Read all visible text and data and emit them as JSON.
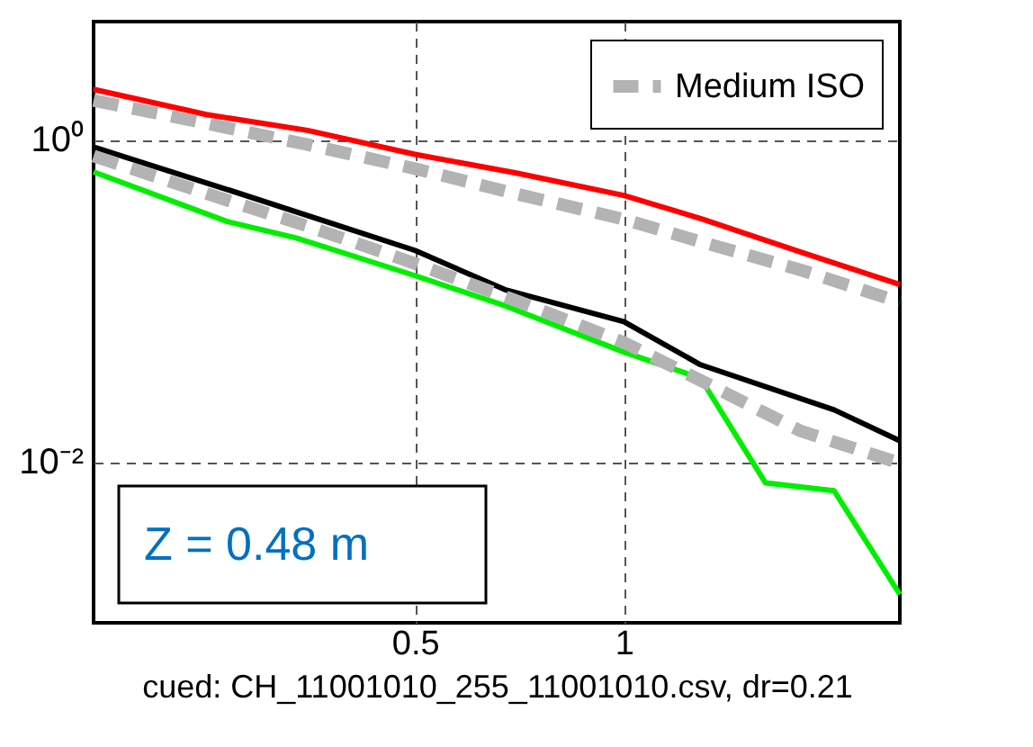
{
  "chart_data": {
    "type": "line",
    "xlabel": "cued: CH_11001010_255_11001010.csv, dr=0.21",
    "log": "xy",
    "xlim": [
      0.172,
      2.5
    ],
    "ylim": [
      0.001,
      5.4
    ],
    "xticks": [
      0.5,
      1
    ],
    "yticks": [
      {
        "value": 1,
        "label": "10⁰"
      },
      {
        "value": 0.01,
        "label": "10⁻²"
      }
    ],
    "grid": true,
    "legend": "top right",
    "marker": "none",
    "annotations": [
      "Z = 0.48 m"
    ],
    "series": [
      {
        "color": "#ff0000",
        "line_style": "solid",
        "x": [
          0.172,
          0.25,
          0.35,
          0.5,
          0.7,
          1,
          1.3,
          1.8,
          2.5
        ],
        "values": [
          2.05,
          1.43,
          1.14,
          0.81,
          0.62,
          0.45,
          0.32,
          0.2,
          0.126
        ]
      },
      {
        "name": "Medium ISO",
        "color": "#b3b3b3",
        "line_style": "dashed",
        "x": [
          0.172,
          0.25,
          0.35,
          0.5,
          0.7,
          1,
          1.3,
          1.8,
          2.5
        ],
        "values": [
          1.75,
          1.26,
          0.93,
          0.66,
          0.46,
          0.32,
          0.23,
          0.155,
          0.098
        ]
      },
      {
        "color": "#000000",
        "line_style": "solid",
        "x": [
          0.172,
          0.268,
          0.5,
          0.674,
          1,
          1.29,
          2.01,
          2.5
        ],
        "values": [
          0.9,
          0.49,
          0.205,
          0.117,
          0.074,
          0.04,
          0.021,
          0.0135
        ]
      },
      {
        "color": "#00ee00",
        "line_style": "solid",
        "x": [
          0.172,
          0.268,
          0.337,
          0.5,
          0.674,
          1,
          1.29,
          1.6,
          2.01,
          2.5
        ],
        "values": [
          0.63,
          0.31,
          0.245,
          0.143,
          0.093,
          0.048,
          0.033,
          0.0074,
          0.0066,
          0.0015
        ]
      },
      {
        "color": "#b3b3b3",
        "line_style": "dashed",
        "x": [
          0.172,
          0.268,
          0.35,
          0.5,
          0.7,
          1,
          1.29,
          1.8,
          2.5
        ],
        "values": [
          0.79,
          0.42,
          0.29,
          0.17,
          0.1,
          0.055,
          0.032,
          0.0155,
          0.0098
        ]
      }
    ]
  }
}
